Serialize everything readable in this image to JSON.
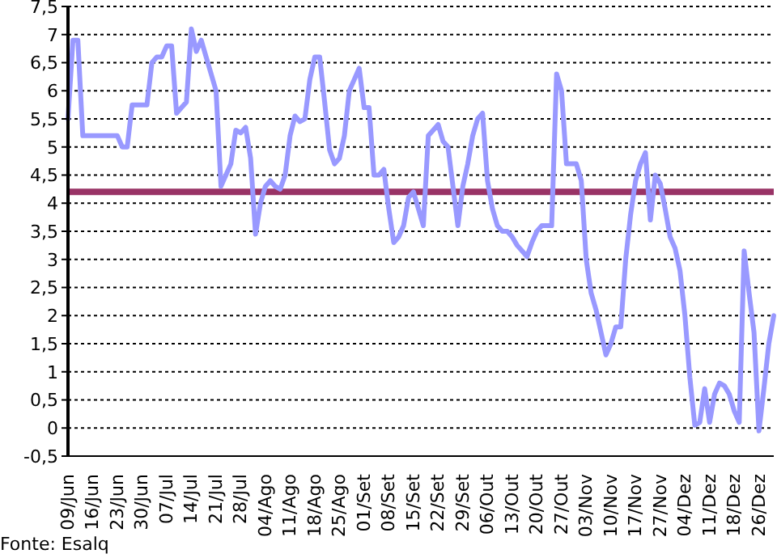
{
  "chart_data": {
    "type": "line",
    "ylim": [
      -0.5,
      7.5
    ],
    "categories": [
      "09/Jun",
      null,
      null,
      null,
      null,
      "16/Jun",
      null,
      null,
      null,
      null,
      "23/Jun",
      null,
      null,
      null,
      null,
      "30/Jun",
      null,
      null,
      null,
      null,
      "07/Jul",
      null,
      null,
      null,
      null,
      "14/Jul",
      null,
      null,
      null,
      null,
      "21/Jul",
      null,
      null,
      null,
      null,
      "28/Jul",
      null,
      null,
      null,
      null,
      "04/Ago",
      null,
      null,
      null,
      null,
      "11/Ago",
      null,
      null,
      null,
      null,
      "18/Ago",
      null,
      null,
      null,
      null,
      "25/Ago",
      null,
      null,
      null,
      null,
      "01/Set",
      null,
      null,
      null,
      null,
      "08/Set",
      null,
      null,
      null,
      null,
      "15/Set",
      null,
      null,
      null,
      null,
      "22/Set",
      null,
      null,
      null,
      null,
      "29/Set",
      null,
      null,
      null,
      null,
      "06/Out",
      null,
      null,
      null,
      null,
      "13/Out",
      null,
      null,
      null,
      null,
      "20/Out",
      null,
      null,
      null,
      null,
      "27/Out",
      null,
      null,
      null,
      null,
      "03/Nov",
      null,
      null,
      null,
      null,
      "10/Nov",
      null,
      null,
      null,
      null,
      "17/Nov",
      null,
      null,
      null,
      null,
      "27/Nov",
      null,
      null,
      null,
      null,
      "04/Dez",
      null,
      null,
      null,
      null,
      "11/Dez",
      null,
      null,
      null,
      null,
      "18/Dez",
      null,
      null,
      null,
      null,
      "26/Dez",
      null,
      null,
      null
    ],
    "yticks": [
      {
        "value": -0.5,
        "label": "-0,5"
      },
      {
        "value": 0,
        "label": "0"
      },
      {
        "value": 0.5,
        "label": "0,5"
      },
      {
        "value": 1,
        "label": "1"
      },
      {
        "value": 1.5,
        "label": "1,5"
      },
      {
        "value": 2,
        "label": "2"
      },
      {
        "value": 2.5,
        "label": "2,5"
      },
      {
        "value": 3,
        "label": "3"
      },
      {
        "value": 3.5,
        "label": "3,5"
      },
      {
        "value": 4,
        "label": "4"
      },
      {
        "value": 4.5,
        "label": "4,5"
      },
      {
        "value": 5,
        "label": "5"
      },
      {
        "value": 5.5,
        "label": "5,5"
      },
      {
        "value": 6,
        "label": "6"
      },
      {
        "value": 6.5,
        "label": "6,5"
      },
      {
        "value": 7,
        "label": "7"
      },
      {
        "value": 7.5,
        "label": "7,5"
      }
    ],
    "grid": "y",
    "marker": "none",
    "line_style": "solid",
    "ref_lines": [
      {
        "axis": "y",
        "value": 4.2,
        "color": "#993366"
      }
    ],
    "annotations": [
      "Fonte: Esalq"
    ],
    "series": [
      {
        "color": "#9999ff",
        "values": [
          5.5,
          6.9,
          6.9,
          5.2,
          5.2,
          5.2,
          5.2,
          5.2,
          5.2,
          5.2,
          5.2,
          5.0,
          5.0,
          5.75,
          5.75,
          5.75,
          5.75,
          6.5,
          6.6,
          6.6,
          6.8,
          6.8,
          5.6,
          5.7,
          5.8,
          7.1,
          6.7,
          6.9,
          6.6,
          6.3,
          6.0,
          4.3,
          4.5,
          4.7,
          5.3,
          5.25,
          5.35,
          4.8,
          3.45,
          4.0,
          4.3,
          4.4,
          4.3,
          4.25,
          4.5,
          5.2,
          5.55,
          5.45,
          5.5,
          6.2,
          6.6,
          6.6,
          5.8,
          4.95,
          4.7,
          4.8,
          5.2,
          6.0,
          6.2,
          6.4,
          5.7,
          5.7,
          4.5,
          4.5,
          4.6,
          3.9,
          3.3,
          3.4,
          3.6,
          4.1,
          4.2,
          3.9,
          3.6,
          5.2,
          5.3,
          5.4,
          5.1,
          5.0,
          4.3,
          3.6,
          4.3,
          4.7,
          5.2,
          5.5,
          5.6,
          4.4,
          3.9,
          3.6,
          3.5,
          3.5,
          3.4,
          3.25,
          3.15,
          3.05,
          3.3,
          3.5,
          3.6,
          3.6,
          3.6,
          6.3,
          6.0,
          4.7,
          4.7,
          4.7,
          4.4,
          3.0,
          2.4,
          2.1,
          1.7,
          1.3,
          1.5,
          1.8,
          1.8,
          3.0,
          3.8,
          4.4,
          4.7,
          4.9,
          3.7,
          4.5,
          4.35,
          3.9,
          3.4,
          3.2,
          2.8,
          2.0,
          0.9,
          0.05,
          0.1,
          0.7,
          0.1,
          0.6,
          0.8,
          0.75,
          0.6,
          0.3,
          0.1,
          3.15,
          2.4,
          1.7,
          -0.05,
          0.7,
          1.5,
          2.0
        ]
      }
    ]
  }
}
